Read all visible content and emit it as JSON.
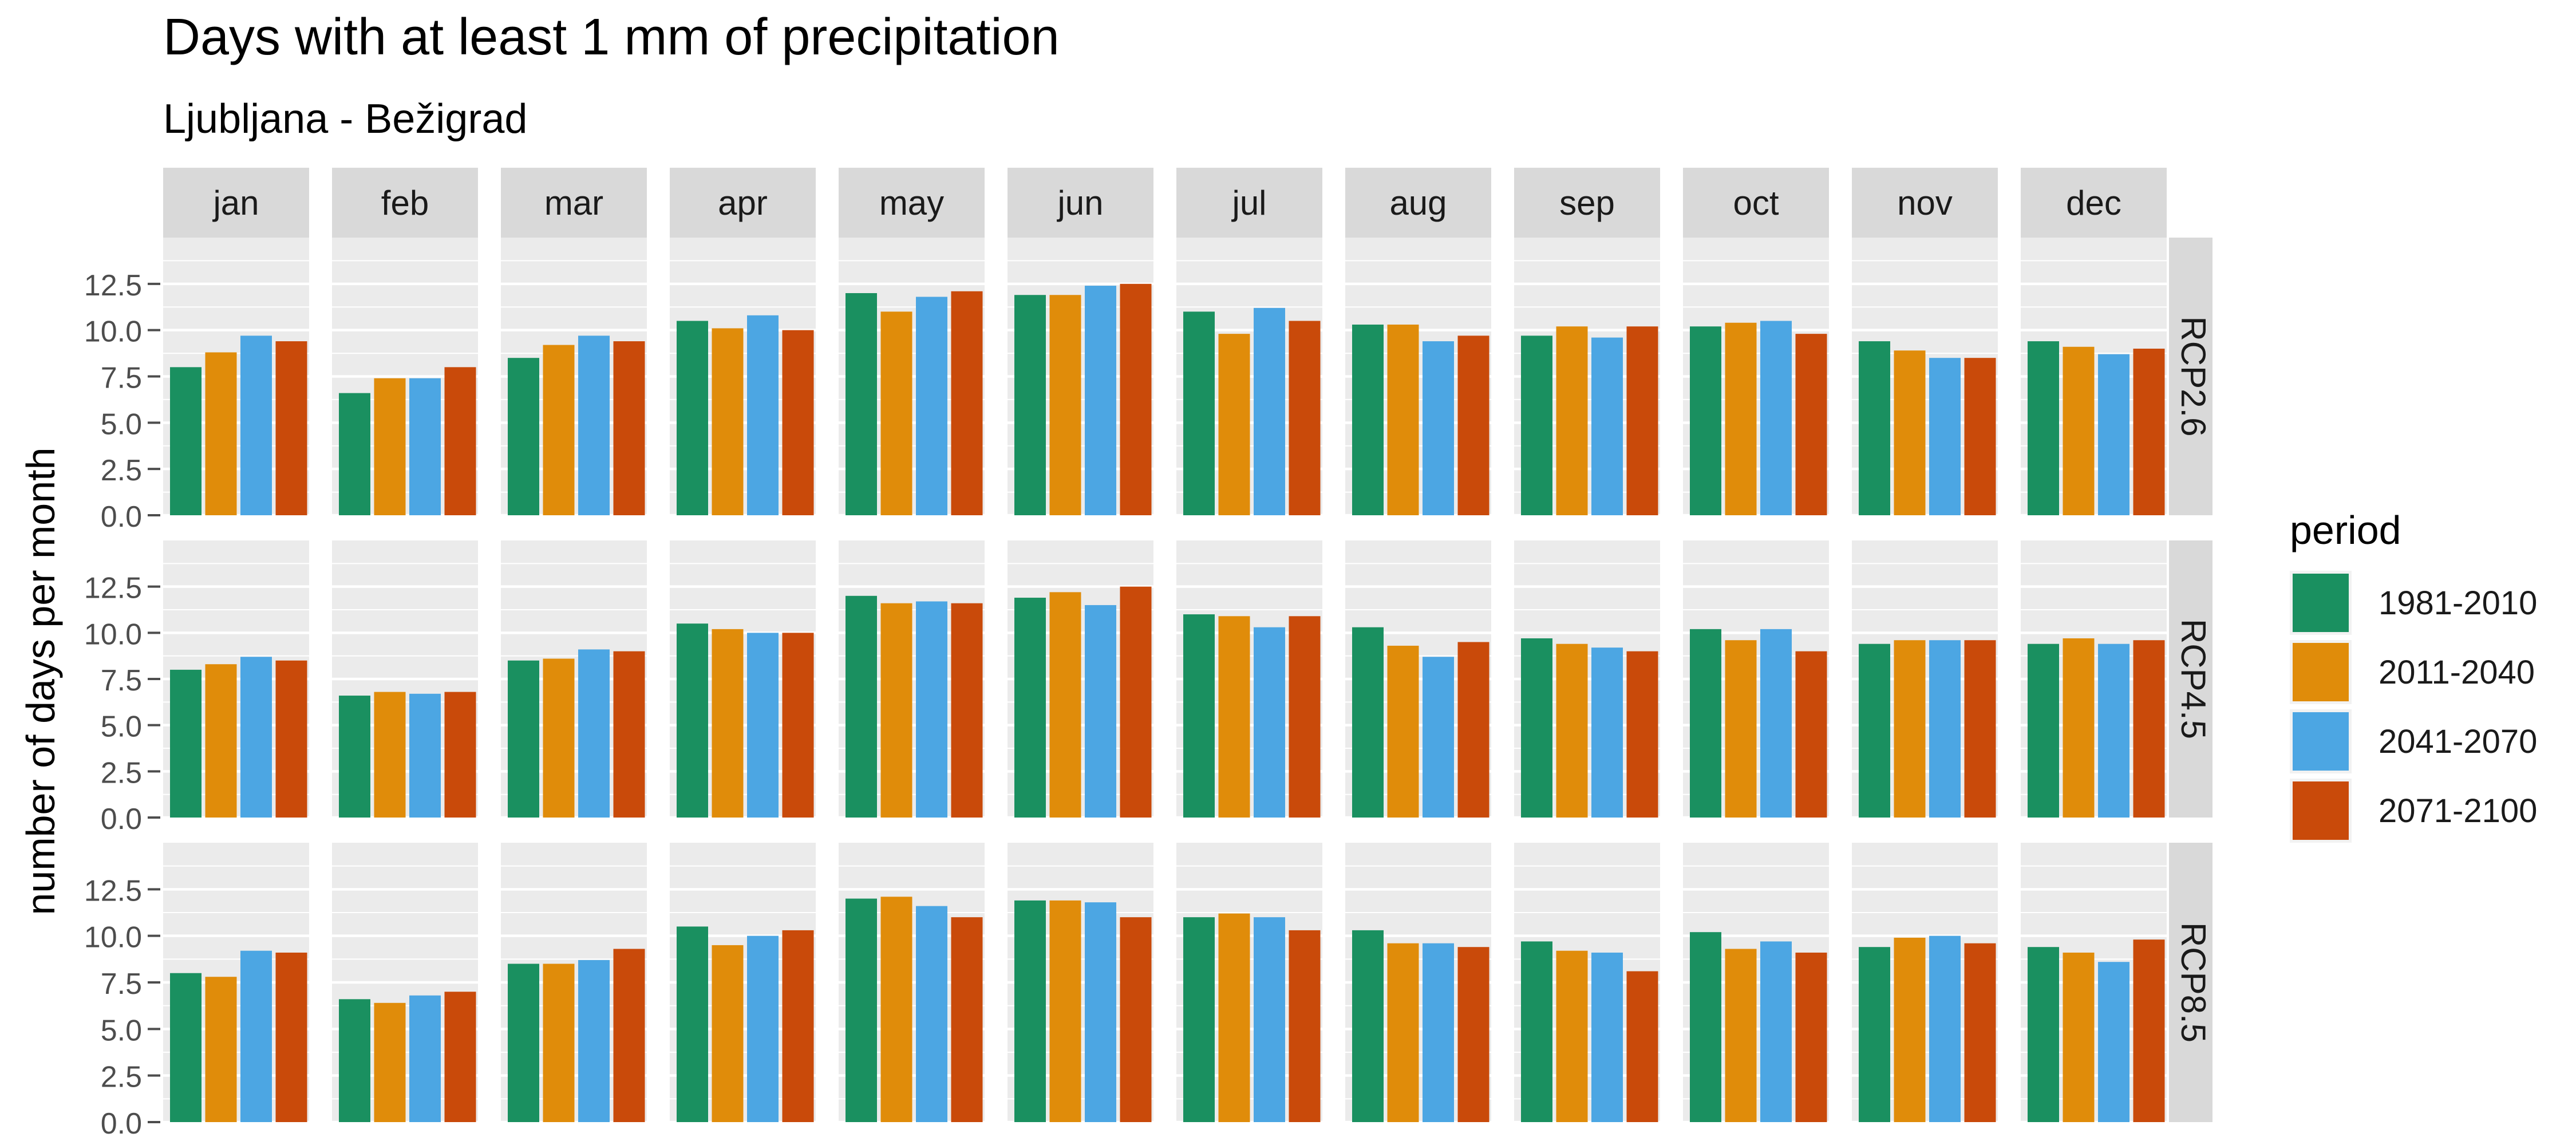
{
  "chart_data": {
    "type": "bar",
    "title": "Days with at least 1 mm of precipitation",
    "subtitle": "Ljubljana - Bežigrad",
    "ylabel": "number of days per month",
    "xlabel": "",
    "ylim": [
      0,
      15
    ],
    "yticks": [
      "0.0",
      "2.5",
      "5.0",
      "7.5",
      "10.0",
      "12.5"
    ],
    "grid": true,
    "legend_title": "period",
    "legend_position": "right",
    "months": [
      "jan",
      "feb",
      "mar",
      "apr",
      "may",
      "jun",
      "jul",
      "aug",
      "sep",
      "oct",
      "nov",
      "dec"
    ],
    "scenarios": [
      "RCP2.6",
      "RCP4.5",
      "RCP8.5"
    ],
    "periods": [
      "1981-2010",
      "2011-2040",
      "2041-2070",
      "2071-2100"
    ],
    "colors": [
      "#1a9060",
      "#e08c0a",
      "#4ca6e3",
      "#c94a0a"
    ],
    "values": {
      "RCP2.6": [
        [
          8.0,
          8.8,
          9.7,
          9.4
        ],
        [
          6.6,
          7.4,
          7.4,
          8.0
        ],
        [
          8.5,
          9.2,
          9.7,
          9.4
        ],
        [
          10.5,
          10.1,
          10.8,
          10.0
        ],
        [
          12.0,
          11.0,
          11.8,
          12.1
        ],
        [
          11.9,
          11.9,
          12.4,
          12.5
        ],
        [
          11.0,
          9.8,
          11.2,
          10.5
        ],
        [
          10.3,
          10.3,
          9.4,
          9.7
        ],
        [
          9.7,
          10.2,
          9.6,
          10.2
        ],
        [
          10.2,
          10.4,
          10.5,
          9.8
        ],
        [
          9.4,
          8.9,
          8.5,
          8.5
        ],
        [
          9.4,
          9.1,
          8.7,
          9.0
        ]
      ],
      "RCP4.5": [
        [
          8.0,
          8.3,
          8.7,
          8.5
        ],
        [
          6.6,
          6.8,
          6.7,
          6.8
        ],
        [
          8.5,
          8.6,
          9.1,
          9.0
        ],
        [
          10.5,
          10.2,
          10.0,
          10.0
        ],
        [
          12.0,
          11.6,
          11.7,
          11.6
        ],
        [
          11.9,
          12.2,
          11.5,
          12.5
        ],
        [
          11.0,
          10.9,
          10.3,
          10.9
        ],
        [
          10.3,
          9.3,
          8.7,
          9.5
        ],
        [
          9.7,
          9.4,
          9.2,
          9.0
        ],
        [
          10.2,
          9.6,
          10.2,
          9.0
        ],
        [
          9.4,
          9.6,
          9.6,
          9.6
        ],
        [
          9.4,
          9.7,
          9.4,
          9.6
        ]
      ],
      "RCP8.5": [
        [
          8.0,
          7.8,
          9.2,
          9.1
        ],
        [
          6.6,
          6.4,
          6.8,
          7.0
        ],
        [
          8.5,
          8.5,
          8.7,
          9.3
        ],
        [
          10.5,
          9.5,
          10.0,
          10.3
        ],
        [
          12.0,
          12.1,
          11.6,
          11.0
        ],
        [
          11.9,
          11.9,
          11.8,
          11.0
        ],
        [
          11.0,
          11.2,
          11.0,
          10.3
        ],
        [
          10.3,
          9.6,
          9.6,
          9.4
        ],
        [
          9.7,
          9.2,
          9.1,
          8.1
        ],
        [
          10.2,
          9.3,
          9.7,
          9.1
        ],
        [
          9.4,
          9.9,
          10.0,
          9.6
        ],
        [
          9.4,
          9.1,
          8.6,
          9.8
        ]
      ]
    }
  }
}
